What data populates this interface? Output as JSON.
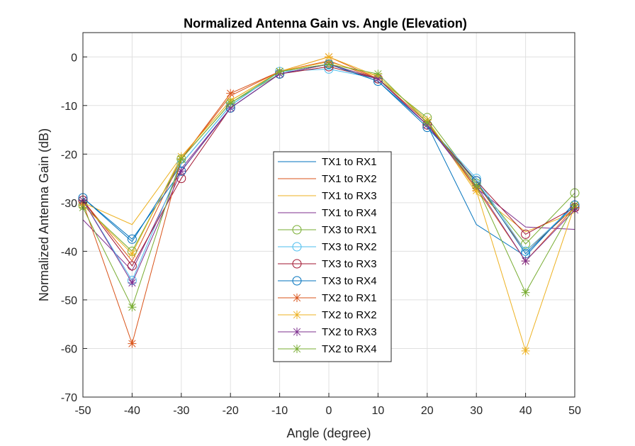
{
  "chart_data": {
    "type": "line",
    "title": "Normalized Antenna Gain vs. Angle (Elevation)",
    "xlabel": "Angle (degree)",
    "ylabel": "Normalized Antenna Gain (dB)",
    "xlim": [
      -50,
      50
    ],
    "ylim": [
      -70,
      5
    ],
    "xticks": [
      -50,
      -40,
      -30,
      -20,
      -10,
      0,
      10,
      20,
      30,
      40,
      50
    ],
    "yticks": [
      0,
      -10,
      -20,
      -30,
      -40,
      -50,
      -60,
      -70
    ],
    "grid": true,
    "legend_position": "center",
    "x": [
      -50,
      -40,
      -30,
      -20,
      -10,
      0,
      10,
      20,
      30,
      40,
      50
    ],
    "series": [
      {
        "name": "TX1 to RX1",
        "color": "#0072BD",
        "marker": "none",
        "values": [
          -29,
          -38,
          -22,
          -10,
          -3,
          -1.5,
          -5,
          -14,
          -34.5,
          -41,
          -30
        ]
      },
      {
        "name": "TX1 to RX2",
        "color": "#D95319",
        "marker": "none",
        "values": [
          -29.5,
          -42,
          -21,
          -8,
          -3,
          -0.8,
          -4.5,
          -13.5,
          -26,
          -40,
          -31
        ]
      },
      {
        "name": "TX1 to RX3",
        "color": "#EDB120",
        "marker": "none",
        "values": [
          -30,
          -34.5,
          -20.5,
          -9,
          -3,
          -1,
          -4,
          -13,
          -28,
          -36,
          -32
        ]
      },
      {
        "name": "TX1 to RX4",
        "color": "#7E2F8E",
        "marker": "none",
        "values": [
          -33.5,
          -44,
          -23,
          -10.5,
          -3.5,
          -1.5,
          -4.5,
          -14,
          -27,
          -35,
          -35.5
        ]
      },
      {
        "name": "TX3 to RX1",
        "color": "#77AC30",
        "marker": "circle",
        "values": [
          -30.5,
          -40,
          -21,
          -9.5,
          -3.5,
          -1.5,
          -4.5,
          -12.5,
          -26,
          -38.5,
          -28
        ]
      },
      {
        "name": "TX3 to RX2",
        "color": "#4DBEEE",
        "marker": "circle",
        "values": [
          -29.5,
          -46,
          -22,
          -10,
          -3,
          -2.5,
          -4.5,
          -14,
          -25,
          -40,
          -30.5
        ]
      },
      {
        "name": "TX3 to RX3",
        "color": "#A2142F",
        "marker": "circle",
        "values": [
          -29.5,
          -43,
          -25,
          -10.5,
          -3.5,
          -2,
          -4.5,
          -14,
          -25.5,
          -36.5,
          -31
        ]
      },
      {
        "name": "TX3 to RX4",
        "color": "#0072BD",
        "marker": "circle",
        "values": [
          -29,
          -37.5,
          -23.5,
          -10.5,
          -3.5,
          -1.5,
          -5,
          -14.5,
          -25.5,
          -40.5,
          -30.5
        ]
      },
      {
        "name": "TX2 to RX1",
        "color": "#D95319",
        "marker": "asterisk",
        "values": [
          -30,
          -59,
          -21,
          -7.5,
          -3,
          0,
          -4.5,
          -13.5,
          -27,
          -42,
          -31
        ]
      },
      {
        "name": "TX2 to RX2",
        "color": "#EDB120",
        "marker": "asterisk",
        "values": [
          -30.5,
          -40.5,
          -20.5,
          -9,
          -3,
          0,
          -4,
          -13,
          -27.5,
          -60.5,
          -30.5
        ]
      },
      {
        "name": "TX2 to RX3",
        "color": "#7E2F8E",
        "marker": "asterisk",
        "values": [
          -29.5,
          -46.5,
          -23.5,
          -10.5,
          -3.5,
          -1.5,
          -4.5,
          -14,
          -26.5,
          -42,
          -31.5
        ]
      },
      {
        "name": "TX2 to RX4",
        "color": "#77AC30",
        "marker": "asterisk",
        "values": [
          -31,
          -51.5,
          -21,
          -9.5,
          -3,
          -1.5,
          -3.5,
          -13.5,
          -26.5,
          -48.5,
          -30.5
        ]
      }
    ]
  }
}
